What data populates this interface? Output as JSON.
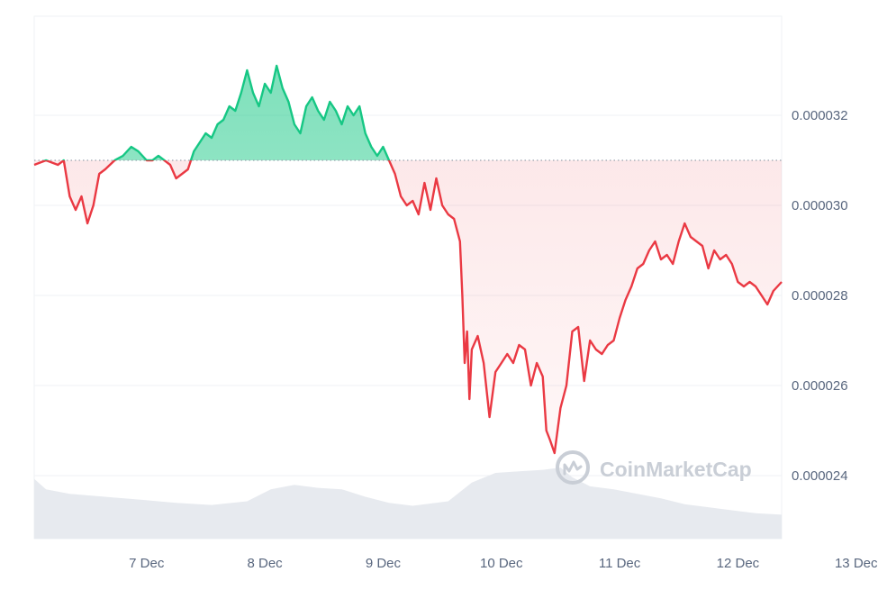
{
  "watermark": "CoinMarketCap",
  "colors": {
    "up": "#16c784",
    "down": "#ea3943",
    "grid": "#eff2f5",
    "axis_text": "#58667e",
    "baseline": "#9aa3af",
    "volume": "#e7eaef",
    "watermark": "#c9ced6"
  },
  "chart_data": {
    "type": "line",
    "title": "",
    "xlabel": "",
    "ylabel": "",
    "x_ticks": [
      "7 Dec",
      "8 Dec",
      "9 Dec",
      "10 Dec",
      "11 Dec",
      "12 Dec",
      "13 Dec"
    ],
    "y_ticks": [
      "0.000024",
      "0.000026",
      "0.000028",
      "0.000030",
      "0.000032"
    ],
    "ylim": [
      2.26e-05,
      3.42e-05
    ],
    "xlim": [
      0,
      6.32
    ],
    "x_unit": "days from 6 Dec 00:00 (first tick 7 Dec at 0.95)",
    "reference_line": 3.1e-05,
    "grid": true,
    "series": [
      {
        "name": "price",
        "points": [
          [
            0.0,
            3.09e-05
          ],
          [
            0.1,
            3.1e-05
          ],
          [
            0.2,
            3.09e-05
          ],
          [
            0.25,
            3.1e-05
          ],
          [
            0.3,
            3.02e-05
          ],
          [
            0.35,
            2.99e-05
          ],
          [
            0.4,
            3.02e-05
          ],
          [
            0.45,
            2.96e-05
          ],
          [
            0.5,
            3e-05
          ],
          [
            0.55,
            3.07e-05
          ],
          [
            0.6,
            3.08e-05
          ],
          [
            0.68,
            3.1e-05
          ],
          [
            0.75,
            3.11e-05
          ],
          [
            0.82,
            3.13e-05
          ],
          [
            0.88,
            3.12e-05
          ],
          [
            0.95,
            3.1e-05
          ],
          [
            1.0,
            3.1e-05
          ],
          [
            1.05,
            3.11e-05
          ],
          [
            1.1,
            3.1e-05
          ],
          [
            1.15,
            3.09e-05
          ],
          [
            1.2,
            3.06e-05
          ],
          [
            1.25,
            3.07e-05
          ],
          [
            1.3,
            3.08e-05
          ],
          [
            1.35,
            3.12e-05
          ],
          [
            1.4,
            3.14e-05
          ],
          [
            1.45,
            3.16e-05
          ],
          [
            1.5,
            3.15e-05
          ],
          [
            1.55,
            3.18e-05
          ],
          [
            1.6,
            3.19e-05
          ],
          [
            1.65,
            3.22e-05
          ],
          [
            1.7,
            3.21e-05
          ],
          [
            1.75,
            3.25e-05
          ],
          [
            1.8,
            3.3e-05
          ],
          [
            1.85,
            3.25e-05
          ],
          [
            1.9,
            3.22e-05
          ],
          [
            1.95,
            3.27e-05
          ],
          [
            2.0,
            3.25e-05
          ],
          [
            2.05,
            3.31e-05
          ],
          [
            2.1,
            3.26e-05
          ],
          [
            2.15,
            3.23e-05
          ],
          [
            2.2,
            3.18e-05
          ],
          [
            2.25,
            3.16e-05
          ],
          [
            2.3,
            3.22e-05
          ],
          [
            2.35,
            3.24e-05
          ],
          [
            2.4,
            3.21e-05
          ],
          [
            2.45,
            3.19e-05
          ],
          [
            2.5,
            3.23e-05
          ],
          [
            2.55,
            3.21e-05
          ],
          [
            2.6,
            3.18e-05
          ],
          [
            2.65,
            3.22e-05
          ],
          [
            2.7,
            3.2e-05
          ],
          [
            2.75,
            3.22e-05
          ],
          [
            2.8,
            3.16e-05
          ],
          [
            2.85,
            3.13e-05
          ],
          [
            2.9,
            3.11e-05
          ],
          [
            2.95,
            3.13e-05
          ],
          [
            3.0,
            3.1e-05
          ],
          [
            3.05,
            3.07e-05
          ],
          [
            3.1,
            3.02e-05
          ],
          [
            3.15,
            3e-05
          ],
          [
            3.2,
            3.01e-05
          ],
          [
            3.25,
            2.98e-05
          ],
          [
            3.3,
            3.05e-05
          ],
          [
            3.35,
            2.99e-05
          ],
          [
            3.4,
            3.06e-05
          ],
          [
            3.45,
            3e-05
          ],
          [
            3.5,
            2.98e-05
          ],
          [
            3.55,
            2.97e-05
          ],
          [
            3.6,
            2.92e-05
          ],
          [
            3.62,
            2.8e-05
          ],
          [
            3.64,
            2.65e-05
          ],
          [
            3.66,
            2.72e-05
          ],
          [
            3.68,
            2.57e-05
          ],
          [
            3.7,
            2.68e-05
          ],
          [
            3.75,
            2.71e-05
          ],
          [
            3.8,
            2.65e-05
          ],
          [
            3.85,
            2.53e-05
          ],
          [
            3.9,
            2.63e-05
          ],
          [
            3.95,
            2.65e-05
          ],
          [
            4.0,
            2.67e-05
          ],
          [
            4.05,
            2.65e-05
          ],
          [
            4.1,
            2.69e-05
          ],
          [
            4.15,
            2.68e-05
          ],
          [
            4.2,
            2.6e-05
          ],
          [
            4.25,
            2.65e-05
          ],
          [
            4.3,
            2.62e-05
          ],
          [
            4.33,
            2.5e-05
          ],
          [
            4.36,
            2.48e-05
          ],
          [
            4.4,
            2.45e-05
          ],
          [
            4.45,
            2.55e-05
          ],
          [
            4.5,
            2.6e-05
          ],
          [
            4.55,
            2.72e-05
          ],
          [
            4.6,
            2.73e-05
          ],
          [
            4.65,
            2.61e-05
          ],
          [
            4.7,
            2.7e-05
          ],
          [
            4.75,
            2.68e-05
          ],
          [
            4.8,
            2.67e-05
          ],
          [
            4.85,
            2.69e-05
          ],
          [
            4.9,
            2.7e-05
          ],
          [
            4.95,
            2.75e-05
          ],
          [
            5.0,
            2.79e-05
          ],
          [
            5.05,
            2.82e-05
          ],
          [
            5.1,
            2.86e-05
          ],
          [
            5.15,
            2.87e-05
          ],
          [
            5.2,
            2.9e-05
          ],
          [
            5.25,
            2.92e-05
          ],
          [
            5.3,
            2.88e-05
          ],
          [
            5.35,
            2.89e-05
          ],
          [
            5.4,
            2.87e-05
          ],
          [
            5.45,
            2.92e-05
          ],
          [
            5.5,
            2.96e-05
          ],
          [
            5.55,
            2.93e-05
          ],
          [
            5.6,
            2.92e-05
          ],
          [
            5.65,
            2.91e-05
          ],
          [
            5.7,
            2.86e-05
          ],
          [
            5.75,
            2.9e-05
          ],
          [
            5.8,
            2.88e-05
          ],
          [
            5.85,
            2.89e-05
          ],
          [
            5.9,
            2.87e-05
          ],
          [
            5.95,
            2.83e-05
          ],
          [
            6.0,
            2.82e-05
          ],
          [
            6.05,
            2.83e-05
          ],
          [
            6.1,
            2.82e-05
          ],
          [
            6.15,
            2.8e-05
          ],
          [
            6.2,
            2.78e-05
          ],
          [
            6.25,
            2.81e-05
          ],
          [
            6.32,
            2.83e-05
          ]
        ]
      },
      {
        "name": "volume",
        "points": [
          [
            0.0,
            0.8
          ],
          [
            0.1,
            0.66
          ],
          [
            0.3,
            0.6
          ],
          [
            0.6,
            0.56
          ],
          [
            0.9,
            0.52
          ],
          [
            1.2,
            0.48
          ],
          [
            1.5,
            0.45
          ],
          [
            1.8,
            0.5
          ],
          [
            2.0,
            0.66
          ],
          [
            2.2,
            0.72
          ],
          [
            2.4,
            0.68
          ],
          [
            2.6,
            0.66
          ],
          [
            2.8,
            0.56
          ],
          [
            3.0,
            0.48
          ],
          [
            3.2,
            0.44
          ],
          [
            3.5,
            0.5
          ],
          [
            3.7,
            0.75
          ],
          [
            3.9,
            0.88
          ],
          [
            4.1,
            0.9
          ],
          [
            4.3,
            0.92
          ],
          [
            4.45,
            0.95
          ],
          [
            4.55,
            0.82
          ],
          [
            4.7,
            0.7
          ],
          [
            4.9,
            0.66
          ],
          [
            5.1,
            0.6
          ],
          [
            5.3,
            0.54
          ],
          [
            5.5,
            0.46
          ],
          [
            5.7,
            0.42
          ],
          [
            5.9,
            0.38
          ],
          [
            6.1,
            0.34
          ],
          [
            6.32,
            0.32
          ]
        ]
      }
    ]
  }
}
